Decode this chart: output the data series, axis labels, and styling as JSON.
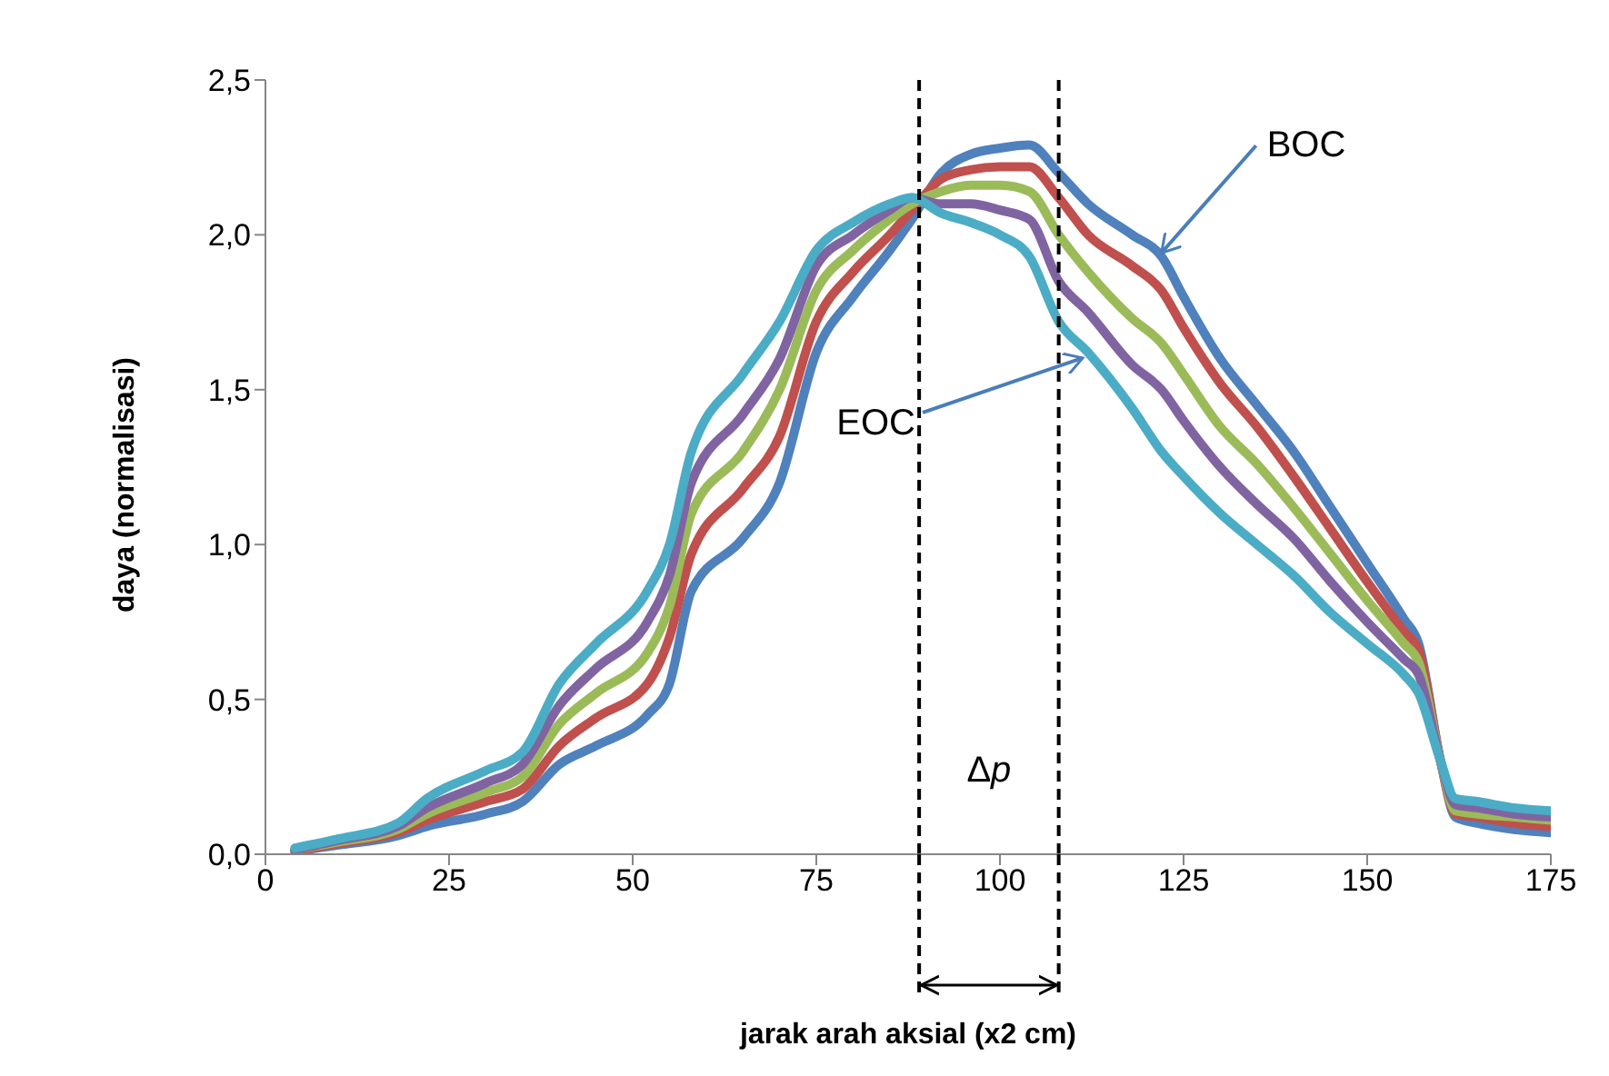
{
  "chart_data": {
    "type": "line",
    "xlabel": "jarak arah aksial (x2 cm)",
    "ylabel": "daya (normalisasi)",
    "x": [
      4,
      10,
      18,
      22,
      30,
      35,
      40,
      45,
      52,
      55,
      58,
      65,
      70,
      75,
      80,
      85,
      88,
      92,
      96,
      100,
      104,
      108,
      112,
      118,
      122,
      125,
      130,
      135,
      140,
      145,
      150,
      155,
      157,
      160,
      162,
      165,
      170,
      175
    ],
    "series": [
      {
        "color": "#4f81bd",
        "values": [
          0.01,
          0.03,
          0.06,
          0.09,
          0.13,
          0.17,
          0.29,
          0.35,
          0.45,
          0.55,
          0.85,
          1.02,
          1.2,
          1.62,
          1.8,
          1.95,
          2.05,
          2.2,
          2.26,
          2.28,
          2.29,
          2.2,
          2.1,
          2.0,
          1.93,
          1.8,
          1.6,
          1.45,
          1.3,
          1.12,
          0.94,
          0.76,
          0.68,
          0.3,
          0.12,
          0.1,
          0.08,
          0.07
        ]
      },
      {
        "color": "#c0504d",
        "values": [
          0.01,
          0.035,
          0.07,
          0.11,
          0.17,
          0.21,
          0.35,
          0.44,
          0.55,
          0.7,
          0.97,
          1.18,
          1.35,
          1.72,
          1.88,
          2.0,
          2.08,
          2.18,
          2.21,
          2.22,
          2.22,
          2.12,
          2.0,
          1.9,
          1.82,
          1.7,
          1.52,
          1.38,
          1.22,
          1.05,
          0.88,
          0.72,
          0.66,
          0.3,
          0.13,
          0.12,
          0.1,
          0.09
        ]
      },
      {
        "color": "#9bbb59",
        "values": [
          0.015,
          0.04,
          0.08,
          0.13,
          0.2,
          0.25,
          0.42,
          0.52,
          0.65,
          0.8,
          1.1,
          1.3,
          1.5,
          1.82,
          1.95,
          2.05,
          2.1,
          2.14,
          2.16,
          2.16,
          2.14,
          2.0,
          1.88,
          1.73,
          1.65,
          1.55,
          1.38,
          1.26,
          1.12,
          0.97,
          0.82,
          0.68,
          0.62,
          0.3,
          0.14,
          0.13,
          0.12,
          0.11
        ]
      },
      {
        "color": "#8064a2",
        "values": [
          0.015,
          0.045,
          0.09,
          0.15,
          0.23,
          0.29,
          0.48,
          0.6,
          0.75,
          0.9,
          1.2,
          1.42,
          1.6,
          1.9,
          2.0,
          2.08,
          2.12,
          2.1,
          2.1,
          2.08,
          2.05,
          1.85,
          1.75,
          1.58,
          1.5,
          1.4,
          1.25,
          1.13,
          1.02,
          0.88,
          0.75,
          0.63,
          0.58,
          0.3,
          0.16,
          0.15,
          0.13,
          0.12
        ]
      },
      {
        "color": "#4bacc6",
        "values": [
          0.02,
          0.05,
          0.1,
          0.18,
          0.27,
          0.33,
          0.55,
          0.68,
          0.85,
          1.0,
          1.3,
          1.55,
          1.72,
          1.95,
          2.04,
          2.1,
          2.12,
          2.07,
          2.04,
          2.0,
          1.93,
          1.72,
          1.62,
          1.44,
          1.3,
          1.22,
          1.1,
          1.0,
          0.9,
          0.78,
          0.68,
          0.58,
          0.52,
          0.3,
          0.18,
          0.17,
          0.15,
          0.14
        ]
      }
    ],
    "xlim": [
      0,
      175
    ],
    "xticks": [
      0,
      25,
      50,
      75,
      100,
      125,
      150,
      175
    ],
    "ylim": [
      0,
      2.5
    ],
    "yticks": [
      {
        "value": 0,
        "label": "0,0"
      },
      {
        "value": 0.5,
        "label": "0,5"
      },
      {
        "value": 1,
        "label": "1,0"
      },
      {
        "value": 1.5,
        "label": "1,5"
      },
      {
        "value": 2,
        "label": "2,0"
      },
      {
        "value": 2.5,
        "label": "2,5"
      }
    ],
    "ref_lines": [
      {
        "axis": "x",
        "value": 89,
        "color": "#000000",
        "line_style": "dashed"
      },
      {
        "axis": "x",
        "value": 108,
        "color": "#000000",
        "line_style": "dashed"
      }
    ],
    "annotations": [
      {
        "text": "BOC",
        "x": 121,
        "y": 1.93
      },
      {
        "text": "EOC",
        "x": 112,
        "y": 1.62
      },
      "Δp"
    ],
    "grid": false,
    "marker": "none",
    "line_style": "solid",
    "legend": false
  }
}
